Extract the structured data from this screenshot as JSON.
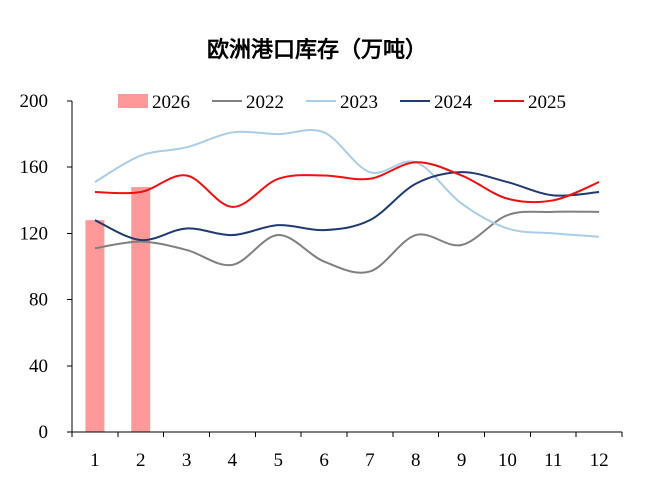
{
  "chart_data": {
    "type": "bar+line",
    "title": "欧洲港口库存（万吨）",
    "xlabel": "",
    "ylabel": "",
    "categories": [
      "1",
      "2",
      "3",
      "4",
      "5",
      "6",
      "7",
      "8",
      "9",
      "10",
      "11",
      "12"
    ],
    "ylim": [
      0,
      200
    ],
    "yticks": [
      0,
      40,
      80,
      120,
      160,
      200
    ],
    "grid": false,
    "legend_position": "top",
    "bars": [
      {
        "name": "2026",
        "color": "#ff9999",
        "values": [
          128,
          148
        ]
      }
    ],
    "series": [
      {
        "name": "2022",
        "color": "#808080",
        "values": [
          111,
          115,
          110,
          101,
          119,
          103,
          97,
          119,
          113,
          131,
          133,
          133
        ]
      },
      {
        "name": "2023",
        "color": "#a9cde8",
        "values": [
          151,
          167,
          172,
          181,
          180,
          181,
          157,
          163,
          138,
          123,
          120,
          118
        ]
      },
      {
        "name": "2024",
        "color": "#1f3a73",
        "values": [
          128,
          116,
          123,
          119,
          125,
          122,
          128,
          150,
          157,
          151,
          143,
          145
        ]
      },
      {
        "name": "2025",
        "color": "#ee1111",
        "values": [
          145,
          145,
          155,
          136,
          153,
          155,
          153,
          163,
          155,
          141,
          140,
          151
        ]
      }
    ]
  }
}
